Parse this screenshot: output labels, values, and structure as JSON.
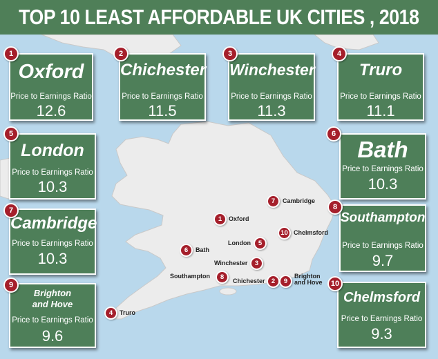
{
  "title": "TOP 10 LEAST AFFORDABLE UK CITIES , 2018",
  "colors": {
    "card": "#4e7f59",
    "badge": "#a51f2b",
    "sea": "#b9d8ec",
    "land": "#ececec"
  },
  "cards": [
    {
      "rank": "1",
      "city": "Oxford",
      "label": "Price to Earnings Ratio",
      "value": "12.6"
    },
    {
      "rank": "2",
      "city": "Chichester",
      "label": "Price to Earnings Ratio",
      "value": "11.5"
    },
    {
      "rank": "3",
      "city": "Winchester",
      "label": "Price to Earnings Ratio",
      "value": "11.3"
    },
    {
      "rank": "4",
      "city": "Truro",
      "label": "Price to Earnings Ratio",
      "value": "11.1"
    },
    {
      "rank": "5",
      "city": "London",
      "label": "Price to Earnings Ratio",
      "value": "10.3"
    },
    {
      "rank": "6",
      "city": "Bath",
      "label": "Price to Earnings Ratio",
      "value": "10.3"
    },
    {
      "rank": "7",
      "city": "Cambridge",
      "label": "Price to Earnings Ratio",
      "value": "10.3"
    },
    {
      "rank": "8",
      "city": "Southampton",
      "label": "Price to Earnings Ratio",
      "value": "9.7"
    },
    {
      "rank": "9",
      "city": "Brighton and Hove",
      "label": "Price to Earnings Ratio",
      "value": "9.6"
    },
    {
      "rank": "10",
      "city": "Chelmsford",
      "label": "Price to Earnings Ratio",
      "value": "9.3"
    }
  ],
  "map_markers": [
    {
      "rank": "1",
      "label": "Oxford"
    },
    {
      "rank": "2",
      "label": "Chichester"
    },
    {
      "rank": "3",
      "label": "Winchester"
    },
    {
      "rank": "4",
      "label": "Truro"
    },
    {
      "rank": "5",
      "label": "London"
    },
    {
      "rank": "6",
      "label": "Bath"
    },
    {
      "rank": "7",
      "label": "Cambridge"
    },
    {
      "rank": "8",
      "label": "Southampton"
    },
    {
      "rank": "9",
      "label": "Brighton and Hove"
    },
    {
      "rank": "10",
      "label": "Chelmsford"
    }
  ]
}
